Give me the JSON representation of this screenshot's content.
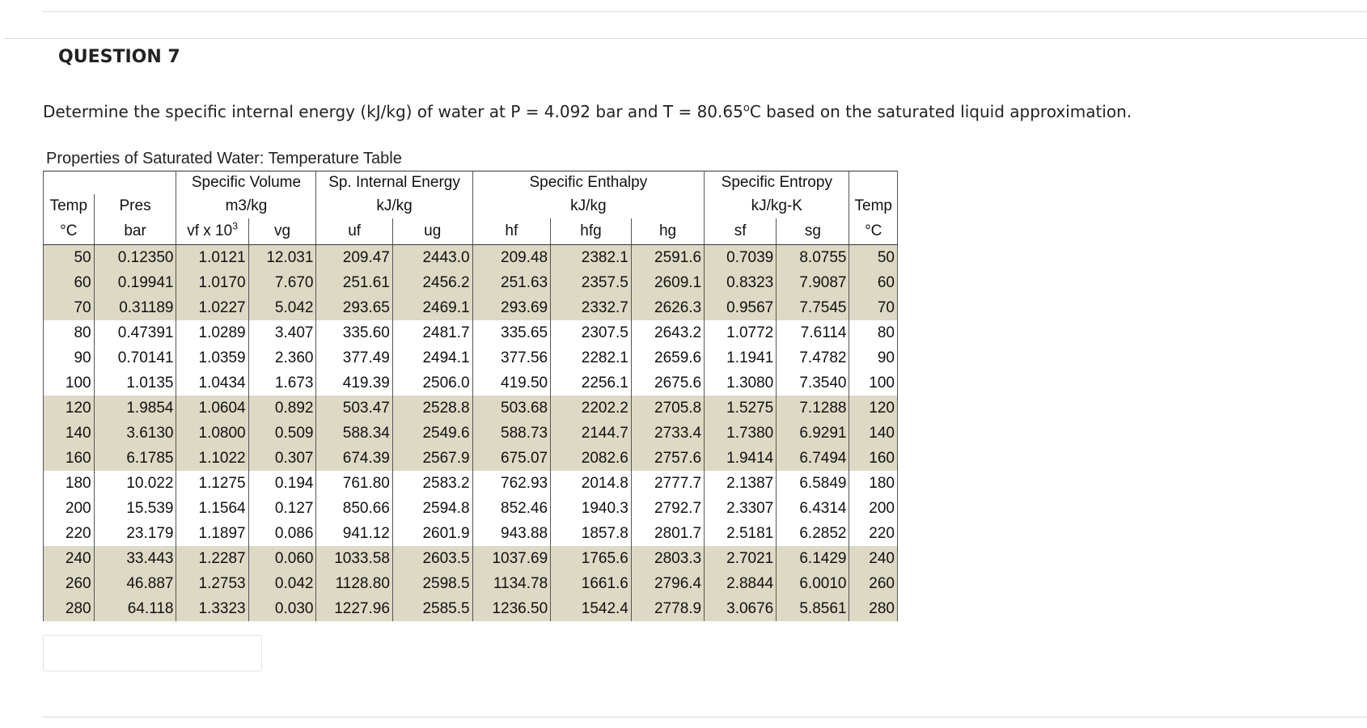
{
  "question": {
    "title": "QUESTION 7",
    "text_before": "Determine the specific internal energy (kJ/kg) of water at P = 4.092 bar and T = 80.65",
    "text_sup": "o",
    "text_after": "C based on the saturated liquid approximation."
  },
  "table": {
    "caption": "Properties of Saturated Water: Temperature Table",
    "group_headers": {
      "specific_volume": "Specific Volume",
      "internal_energy": "Sp. Internal Energy",
      "enthalpy": "Specific Enthalpy",
      "entropy": "Specific Entropy"
    },
    "units": {
      "temp": "Temp",
      "pres": "Pres",
      "volume": "m3/kg",
      "energy": "kJ/kg",
      "enthalpy": "kJ/kg",
      "entropy": "kJ/kg-K",
      "temp_right": "Temp"
    },
    "columns": {
      "temp": "°C",
      "pres": "bar",
      "vf_base": "vf x 10",
      "vf_exp": "3",
      "vg": "vg",
      "uf": "uf",
      "ug": "ug",
      "hf": "hf",
      "hfg": "hfg",
      "hg": "hg",
      "sf": "sf",
      "sg": "sg",
      "temp_right": "°C"
    },
    "rows": [
      [
        "50",
        "0.12350",
        "1.0121",
        "12.031",
        "209.47",
        "2443.0",
        "209.48",
        "2382.1",
        "2591.6",
        "0.7039",
        "8.0755",
        "50"
      ],
      [
        "60",
        "0.19941",
        "1.0170",
        "7.670",
        "251.61",
        "2456.2",
        "251.63",
        "2357.5",
        "2609.1",
        "0.8323",
        "7.9087",
        "60"
      ],
      [
        "70",
        "0.31189",
        "1.0227",
        "5.042",
        "293.65",
        "2469.1",
        "293.69",
        "2332.7",
        "2626.3",
        "0.9567",
        "7.7545",
        "70"
      ],
      [
        "80",
        "0.47391",
        "1.0289",
        "3.407",
        "335.60",
        "2481.7",
        "335.65",
        "2307.5",
        "2643.2",
        "1.0772",
        "7.6114",
        "80"
      ],
      [
        "90",
        "0.70141",
        "1.0359",
        "2.360",
        "377.49",
        "2494.1",
        "377.56",
        "2282.1",
        "2659.6",
        "1.1941",
        "7.4782",
        "90"
      ],
      [
        "100",
        "1.0135",
        "1.0434",
        "1.673",
        "419.39",
        "2506.0",
        "419.50",
        "2256.1",
        "2675.6",
        "1.3080",
        "7.3540",
        "100"
      ],
      [
        "120",
        "1.9854",
        "1.0604",
        "0.892",
        "503.47",
        "2528.8",
        "503.68",
        "2202.2",
        "2705.8",
        "1.5275",
        "7.1288",
        "120"
      ],
      [
        "140",
        "3.6130",
        "1.0800",
        "0.509",
        "588.34",
        "2549.6",
        "588.73",
        "2144.7",
        "2733.4",
        "1.7380",
        "6.9291",
        "140"
      ],
      [
        "160",
        "6.1785",
        "1.1022",
        "0.307",
        "674.39",
        "2567.9",
        "675.07",
        "2082.6",
        "2757.6",
        "1.9414",
        "6.7494",
        "160"
      ],
      [
        "180",
        "10.022",
        "1.1275",
        "0.194",
        "761.80",
        "2583.2",
        "762.93",
        "2014.8",
        "2777.7",
        "2.1387",
        "6.5849",
        "180"
      ],
      [
        "200",
        "15.539",
        "1.1564",
        "0.127",
        "850.66",
        "2594.8",
        "852.46",
        "1940.3",
        "2792.7",
        "2.3307",
        "6.4314",
        "200"
      ],
      [
        "220",
        "23.179",
        "1.1897",
        "0.086",
        "941.12",
        "2601.9",
        "943.88",
        "1857.8",
        "2801.7",
        "2.5181",
        "6.2852",
        "220"
      ],
      [
        "240",
        "33.443",
        "1.2287",
        "0.060",
        "1033.58",
        "2603.5",
        "1037.69",
        "1765.6",
        "2803.3",
        "2.7021",
        "6.1429",
        "240"
      ],
      [
        "260",
        "46.887",
        "1.2753",
        "0.042",
        "1128.80",
        "2598.5",
        "1134.78",
        "1661.6",
        "2796.4",
        "2.8844",
        "6.0010",
        "260"
      ],
      [
        "280",
        "64.118",
        "1.3323",
        "0.030",
        "1227.96",
        "2585.5",
        "1236.50",
        "1542.4",
        "2778.9",
        "3.0676",
        "5.8561",
        "280"
      ]
    ],
    "shaded_rows": [
      0,
      1,
      2,
      6,
      7,
      8,
      12,
      13,
      14
    ],
    "shade_color": "#ddd9c4"
  },
  "answer": {
    "value": ""
  }
}
